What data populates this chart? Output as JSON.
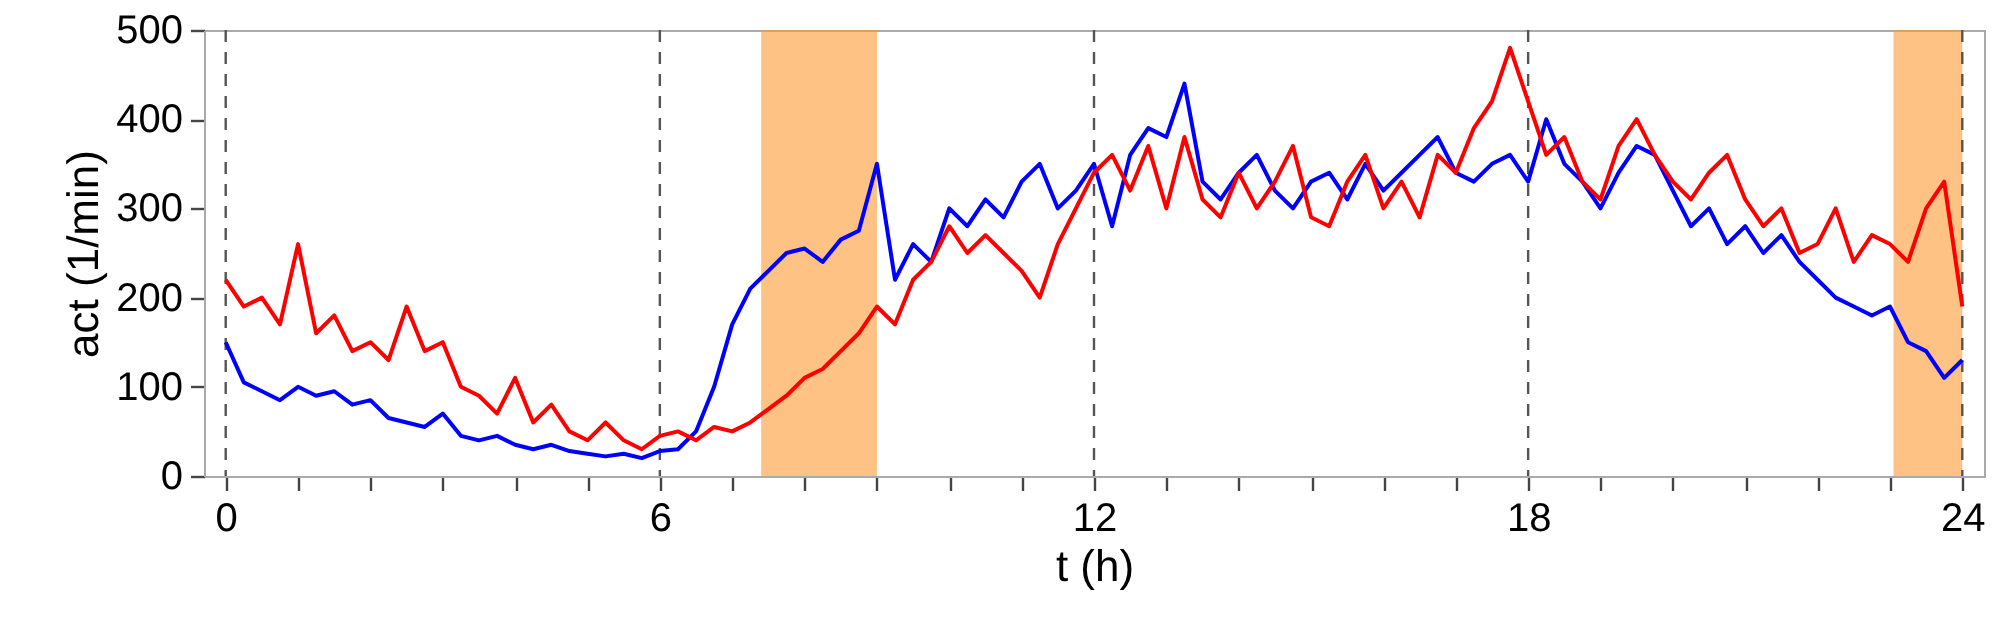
{
  "chart_data": {
    "type": "line",
    "xlabel": "t (h)",
    "ylabel": "act (1/min)",
    "x": [
      0,
      0.25,
      0.5,
      0.75,
      1,
      1.25,
      1.5,
      1.75,
      2,
      2.25,
      2.5,
      2.75,
      3,
      3.25,
      3.5,
      3.75,
      4,
      4.25,
      4.5,
      4.75,
      5,
      5.25,
      5.5,
      5.75,
      6,
      6.25,
      6.5,
      6.75,
      7,
      7.25,
      7.5,
      7.75,
      8,
      8.25,
      8.5,
      8.75,
      9,
      9.25,
      9.5,
      9.75,
      10,
      10.25,
      10.5,
      10.75,
      11,
      11.25,
      11.5,
      11.75,
      12,
      12.25,
      12.5,
      12.75,
      13,
      13.25,
      13.5,
      13.75,
      14,
      14.25,
      14.5,
      14.75,
      15,
      15.25,
      15.5,
      15.75,
      16,
      16.25,
      16.5,
      16.75,
      17,
      17.25,
      17.5,
      17.75,
      18,
      18.25,
      18.5,
      18.75,
      19,
      19.25,
      19.5,
      19.75,
      20,
      20.25,
      20.5,
      20.75,
      21,
      21.25,
      21.5,
      21.75,
      22,
      22.25,
      22.5,
      22.75,
      23,
      23.25,
      23.5,
      23.75,
      24
    ],
    "series": [
      {
        "color": "#0000ff",
        "values": [
          150,
          105,
          95,
          85,
          100,
          90,
          95,
          80,
          85,
          65,
          60,
          55,
          70,
          45,
          40,
          45,
          35,
          30,
          35,
          28,
          25,
          22,
          25,
          20,
          28,
          30,
          50,
          100,
          170,
          210,
          230,
          250,
          255,
          240,
          265,
          275,
          350,
          220,
          260,
          240,
          300,
          280,
          310,
          290,
          330,
          350,
          300,
          320,
          350,
          280,
          360,
          390,
          380,
          440,
          330,
          310,
          340,
          360,
          320,
          300,
          330,
          340,
          310,
          350,
          320,
          340,
          360,
          380,
          340,
          330,
          350,
          360,
          330,
          400,
          350,
          330,
          300,
          340,
          370,
          360,
          320,
          280,
          300,
          260,
          280,
          250,
          270,
          240,
          220,
          200,
          190,
          180,
          190,
          150,
          140,
          110,
          130
        ]
      },
      {
        "color": "#ff0000",
        "values": [
          220,
          190,
          200,
          170,
          260,
          160,
          180,
          140,
          150,
          130,
          190,
          140,
          150,
          100,
          90,
          70,
          110,
          60,
          80,
          50,
          40,
          60,
          40,
          30,
          45,
          50,
          40,
          55,
          50,
          60,
          75,
          90,
          110,
          120,
          140,
          160,
          190,
          170,
          220,
          240,
          280,
          250,
          270,
          250,
          230,
          200,
          260,
          300,
          340,
          360,
          320,
          370,
          300,
          380,
          310,
          290,
          340,
          300,
          330,
          370,
          290,
          280,
          330,
          360,
          300,
          330,
          290,
          360,
          340,
          390,
          420,
          480,
          420,
          360,
          380,
          330,
          310,
          370,
          400,
          360,
          330,
          310,
          340,
          360,
          310,
          280,
          300,
          250,
          260,
          300,
          240,
          270,
          260,
          240,
          300,
          330,
          190
        ]
      }
    ],
    "xlim": [
      -0.3,
      24.3
    ],
    "ylim": [
      0,
      500
    ],
    "xticks": [
      0,
      {
        "value": 1,
        "label": null
      },
      {
        "value": 2,
        "label": null
      },
      {
        "value": 3,
        "label": null
      },
      {
        "value": 4,
        "label": null
      },
      {
        "value": 5,
        "label": null
      },
      6,
      {
        "value": 7,
        "label": null
      },
      {
        "value": 8,
        "label": null
      },
      {
        "value": 9,
        "label": null
      },
      {
        "value": 10,
        "label": null
      },
      {
        "value": 11,
        "label": null
      },
      12,
      {
        "value": 13,
        "label": null
      },
      {
        "value": 14,
        "label": null
      },
      {
        "value": 15,
        "label": null
      },
      {
        "value": 16,
        "label": null
      },
      {
        "value": 17,
        "label": null
      },
      18,
      {
        "value": 19,
        "label": null
      },
      {
        "value": 20,
        "label": null
      },
      {
        "value": 21,
        "label": null
      },
      {
        "value": 22,
        "label": null
      },
      {
        "value": 23,
        "label": null
      },
      24
    ],
    "yticks": [
      0,
      100,
      200,
      300,
      400,
      500
    ],
    "ref_lines": [
      {
        "axis": "x",
        "value": 0,
        "color": "#555555",
        "line_style": "dashed"
      },
      {
        "axis": "x",
        "value": 6,
        "color": "#555555",
        "line_style": "dashed"
      },
      {
        "axis": "x",
        "value": 12,
        "color": "#555555",
        "line_style": "dashed"
      },
      {
        "axis": "x",
        "value": 18,
        "color": "#555555",
        "line_style": "dashed"
      },
      {
        "axis": "x",
        "value": 24,
        "color": "#555555",
        "line_style": "dashed"
      }
    ],
    "bands": [
      {
        "axis": "x",
        "from": 7.4,
        "to": 9.0,
        "color": "#ff9933"
      },
      {
        "axis": "x",
        "from": 23.05,
        "to": 24,
        "color": "#ff9933"
      }
    ]
  }
}
